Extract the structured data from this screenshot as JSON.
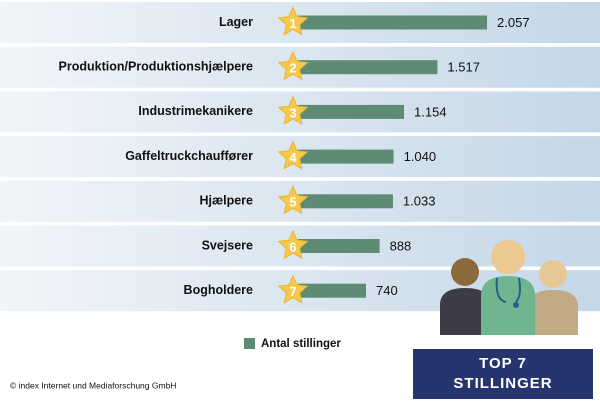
{
  "chart_data": {
    "type": "bar",
    "orientation": "horizontal",
    "categories": [
      "Lager",
      "Produktion/Produktionshjælpere",
      "Industrimekanikere",
      "Gaffeltruckchauffører",
      "Hjælpere",
      "Svejsere",
      "Bogholdere"
    ],
    "ranks": [
      1,
      2,
      3,
      4,
      5,
      6,
      7
    ],
    "series": [
      {
        "name": "Antal stillinger",
        "color": "#5e8b74",
        "values": [
          2057,
          1517,
          1154,
          1040,
          1033,
          888,
          740
        ],
        "value_labels": [
          "2.057",
          "1.517",
          "1.154",
          "1.040",
          "1.033",
          "888",
          "740"
        ]
      }
    ],
    "badge": [
      "TOP 7",
      "STILLINGER"
    ],
    "source": "© index Internet und Mediaforschung GmbH"
  }
}
